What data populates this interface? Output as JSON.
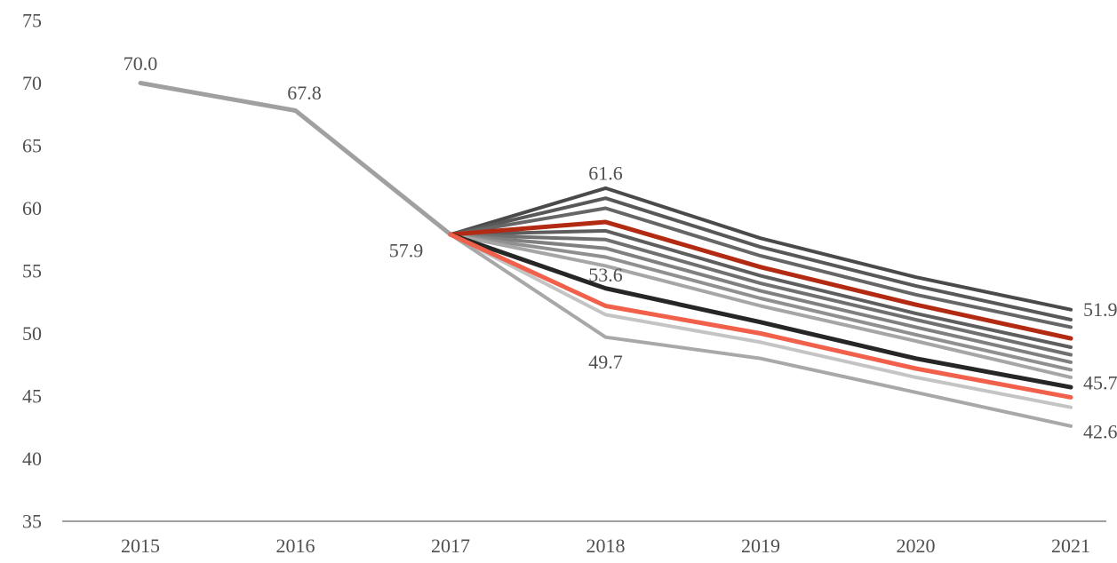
{
  "chart_data": {
    "type": "line",
    "title": "",
    "xlabel": "",
    "ylabel": "",
    "x": [
      "2015",
      "2016",
      "2017",
      "2018",
      "2019",
      "2020",
      "2021"
    ],
    "ylim": [
      35,
      75
    ],
    "yticks": [
      35,
      40,
      45,
      50,
      55,
      60,
      65,
      70,
      75
    ],
    "grid": false,
    "legend": "none",
    "history": {
      "values": [
        70.0,
        67.8,
        57.9
      ],
      "color": "#a0a0a0"
    },
    "series": [
      {
        "values": [
          null,
          null,
          57.9,
          61.6,
          57.6,
          54.5,
          51.9
        ],
        "color": "#4a4a4a"
      },
      {
        "values": [
          null,
          null,
          57.9,
          60.8,
          56.9,
          53.8,
          51.1
        ],
        "color": "#585858"
      },
      {
        "values": [
          null,
          null,
          57.9,
          60.0,
          56.2,
          53.1,
          50.5
        ],
        "color": "#666666"
      },
      {
        "values": [
          null,
          null,
          57.9,
          58.9,
          55.3,
          52.3,
          49.6
        ],
        "color": "#b22a12"
      },
      {
        "values": [
          null,
          null,
          57.9,
          58.2,
          54.6,
          51.6,
          48.9
        ],
        "color": "#5e5e5e"
      },
      {
        "values": [
          null,
          null,
          57.9,
          57.5,
          54.0,
          51.1,
          48.3
        ],
        "color": "#707070"
      },
      {
        "values": [
          null,
          null,
          57.9,
          56.8,
          53.4,
          50.5,
          47.7
        ],
        "color": "#808080"
      },
      {
        "values": [
          null,
          null,
          57.9,
          56.1,
          52.8,
          49.9,
          47.1
        ],
        "color": "#909090"
      },
      {
        "values": [
          null,
          null,
          57.9,
          55.4,
          52.2,
          49.4,
          46.5
        ],
        "color": "#a6a6a6"
      },
      {
        "values": [
          null,
          null,
          57.9,
          53.6,
          50.9,
          48.0,
          45.7
        ],
        "color": "#262626"
      },
      {
        "values": [
          null,
          null,
          57.9,
          52.2,
          50.0,
          47.2,
          44.9
        ],
        "color": "#f0604a"
      },
      {
        "values": [
          null,
          null,
          57.9,
          51.5,
          49.3,
          46.5,
          44.1
        ],
        "color": "#c4c4c4"
      },
      {
        "values": [
          null,
          null,
          57.9,
          49.7,
          48.0,
          45.3,
          42.6
        ],
        "color": "#a8a8a8"
      }
    ],
    "data_labels": [
      {
        "x": "2015",
        "y": 70.0,
        "text": "70.0"
      },
      {
        "x": "2016",
        "y": 67.8,
        "text": "67.8"
      },
      {
        "x": "2017",
        "y": 57.9,
        "text": "57.9"
      },
      {
        "x": "2018",
        "y": 61.6,
        "text": "61.6"
      },
      {
        "x": "2018",
        "y": 53.6,
        "text": "53.6"
      },
      {
        "x": "2018",
        "y": 49.7,
        "text": "49.7"
      },
      {
        "x": "2021",
        "y": 51.9,
        "text": "51.9"
      },
      {
        "x": "2021",
        "y": 45.7,
        "text": "45.7"
      },
      {
        "x": "2021",
        "y": 42.6,
        "text": "42.6"
      }
    ]
  }
}
